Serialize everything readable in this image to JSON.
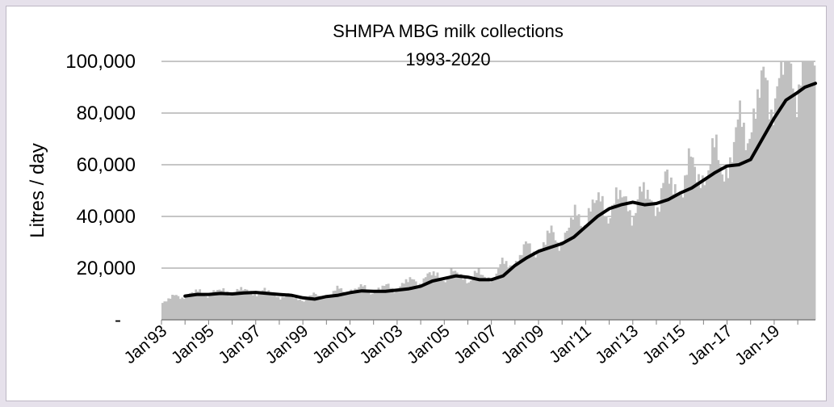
{
  "chart_data": {
    "type": "bar",
    "title": "SHMPA MBG milk collections",
    "subtitle": "1993-2020",
    "ylabel": "Litres / day",
    "xlabel": "",
    "ylim": [
      0,
      100000
    ],
    "grid": true,
    "legend": "none",
    "y_ticks": [
      {
        "value": 0,
        "label": "-"
      },
      {
        "value": 20000,
        "label": "20,000"
      },
      {
        "value": 40000,
        "label": "40,000"
      },
      {
        "value": 60000,
        "label": "60,000"
      },
      {
        "value": 80000,
        "label": "80,000"
      },
      {
        "value": 100000,
        "label": "100,000"
      }
    ],
    "x_ticks": [
      {
        "year": 1993,
        "label": "Jan'93"
      },
      {
        "year": 1995,
        "label": "Jan'95"
      },
      {
        "year": 1997,
        "label": "Jan'97"
      },
      {
        "year": 1999,
        "label": "Jan'99"
      },
      {
        "year": 2001,
        "label": "Jan'01"
      },
      {
        "year": 2003,
        "label": "Jan'03"
      },
      {
        "year": 2005,
        "label": "Jan'05"
      },
      {
        "year": 2007,
        "label": "Jan'07"
      },
      {
        "year": 2009,
        "label": "Jan'09"
      },
      {
        "year": 2011,
        "label": "Jan'11"
      },
      {
        "year": 2013,
        "label": "Jan'13"
      },
      {
        "year": 2015,
        "label": "Jan'15"
      },
      {
        "year": 2017,
        "label": "Jan-17"
      },
      {
        "year": 2019,
        "label": "Jan-19"
      }
    ],
    "x_range": [
      1993,
      2020.75
    ],
    "monthly_profile": [
      [
        1993,
        7000
      ],
      [
        1994,
        10000
      ],
      [
        1995,
        10500
      ],
      [
        1996,
        11000
      ],
      [
        1997,
        11000
      ],
      [
        1998,
        9500
      ],
      [
        1999,
        8000
      ],
      [
        2000,
        10000
      ],
      [
        2001,
        12000
      ],
      [
        2002,
        11500
      ],
      [
        2003,
        13000
      ],
      [
        2004,
        16000
      ],
      [
        2005,
        17500
      ],
      [
        2006,
        16500
      ],
      [
        2007,
        17000
      ],
      [
        2008,
        24000
      ],
      [
        2009,
        29000
      ],
      [
        2010,
        33000
      ],
      [
        2011,
        42000
      ],
      [
        2012,
        45000
      ],
      [
        2013,
        45000
      ],
      [
        2014,
        48000
      ],
      [
        2015,
        54000
      ],
      [
        2016,
        59000
      ],
      [
        2017,
        62000
      ],
      [
        2018,
        80000
      ],
      [
        2019,
        92000
      ],
      [
        2020,
        98000
      ],
      [
        2020.75,
        99000
      ]
    ],
    "bar_color": "#c0c0c0",
    "series": [
      {
        "type": "line",
        "color": "#000000",
        "points": [
          [
            1994.0,
            9200
          ],
          [
            1994.5,
            9800
          ],
          [
            1995.0,
            9800
          ],
          [
            1995.5,
            10200
          ],
          [
            1996.0,
            10000
          ],
          [
            1996.5,
            10400
          ],
          [
            1997.0,
            10600
          ],
          [
            1997.5,
            10200
          ],
          [
            1998.0,
            9800
          ],
          [
            1998.5,
            9500
          ],
          [
            1999.0,
            8500
          ],
          [
            1999.5,
            8000
          ],
          [
            2000.0,
            9000
          ],
          [
            2000.5,
            9500
          ],
          [
            2001.0,
            10500
          ],
          [
            2001.5,
            11200
          ],
          [
            2002.0,
            11000
          ],
          [
            2002.5,
            11000
          ],
          [
            2003.0,
            11500
          ],
          [
            2003.5,
            12000
          ],
          [
            2004.0,
            13000
          ],
          [
            2004.5,
            15000
          ],
          [
            2005.0,
            16000
          ],
          [
            2005.5,
            17000
          ],
          [
            2006.0,
            16500
          ],
          [
            2006.5,
            15500
          ],
          [
            2007.0,
            15500
          ],
          [
            2007.5,
            17000
          ],
          [
            2008.0,
            21000
          ],
          [
            2008.5,
            24000
          ],
          [
            2009.0,
            26500
          ],
          [
            2009.5,
            28000
          ],
          [
            2010.0,
            29500
          ],
          [
            2010.5,
            32000
          ],
          [
            2011.0,
            36000
          ],
          [
            2011.5,
            40000
          ],
          [
            2012.0,
            43000
          ],
          [
            2012.5,
            44500
          ],
          [
            2013.0,
            45500
          ],
          [
            2013.5,
            44500
          ],
          [
            2014.0,
            45000
          ],
          [
            2014.5,
            46500
          ],
          [
            2015.0,
            49000
          ],
          [
            2015.5,
            51000
          ],
          [
            2016.0,
            54000
          ],
          [
            2016.5,
            57000
          ],
          [
            2017.0,
            59500
          ],
          [
            2017.5,
            60000
          ],
          [
            2018.0,
            62000
          ],
          [
            2018.5,
            70000
          ],
          [
            2019.0,
            78000
          ],
          [
            2019.5,
            85000
          ],
          [
            2020.0,
            88000
          ],
          [
            2020.3,
            90000
          ],
          [
            2020.75,
            91500
          ]
        ]
      }
    ]
  }
}
